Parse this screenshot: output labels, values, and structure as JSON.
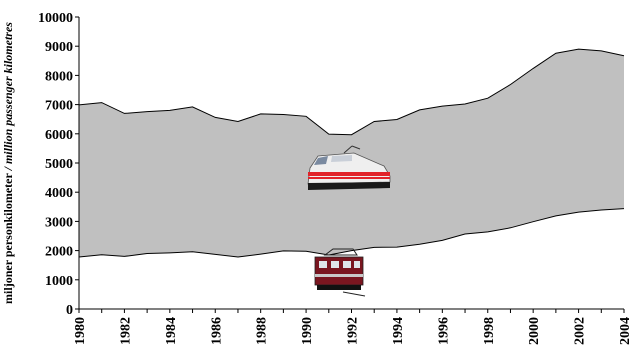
{
  "chart_data": {
    "type": "area",
    "title": "",
    "xlabel": "",
    "ylabel": "miljoner personkilometer",
    "ylabel_secondary": "/ million passenger kilometres",
    "x": [
      1980,
      1981,
      1982,
      1983,
      1984,
      1985,
      1986,
      1987,
      1988,
      1989,
      1990,
      1991,
      1992,
      1993,
      1994,
      1995,
      1996,
      1997,
      1998,
      1999,
      2000,
      2001,
      2002,
      2003,
      2004
    ],
    "x_tick_labels": [
      "1980",
      "1982",
      "1984",
      "1986",
      "1988",
      "1990",
      "1992",
      "1994",
      "1996",
      "1998",
      "2000",
      "2002",
      "2004"
    ],
    "ylim": [
      0,
      10000
    ],
    "y_ticks": [
      0,
      1000,
      2000,
      3000,
      4000,
      5000,
      6000,
      7000,
      8000,
      9000,
      10000
    ],
    "grid": false,
    "legend": "none",
    "series": [
      {
        "values": [
          1780,
          1860,
          1800,
          1900,
          1920,
          1960,
          1870,
          1780,
          1880,
          1990,
          1980,
          1850,
          2000,
          2110,
          2120,
          2220,
          2350,
          2570,
          2640,
          2780,
          2990,
          3190,
          3320,
          3390,
          3440
        ],
        "fill": "#ffffff"
      },
      {
        "values": [
          6990,
          7070,
          6700,
          6760,
          6800,
          6920,
          6560,
          6420,
          6680,
          6660,
          6600,
          5990,
          5970,
          6420,
          6490,
          6820,
          6950,
          7020,
          7220,
          7690,
          8240,
          8760,
          8900,
          8840,
          8670
        ],
        "fill": "#c0c0c0"
      }
    ],
    "icons": [
      "high-speed-train-icon",
      "locomotive-icon"
    ]
  }
}
